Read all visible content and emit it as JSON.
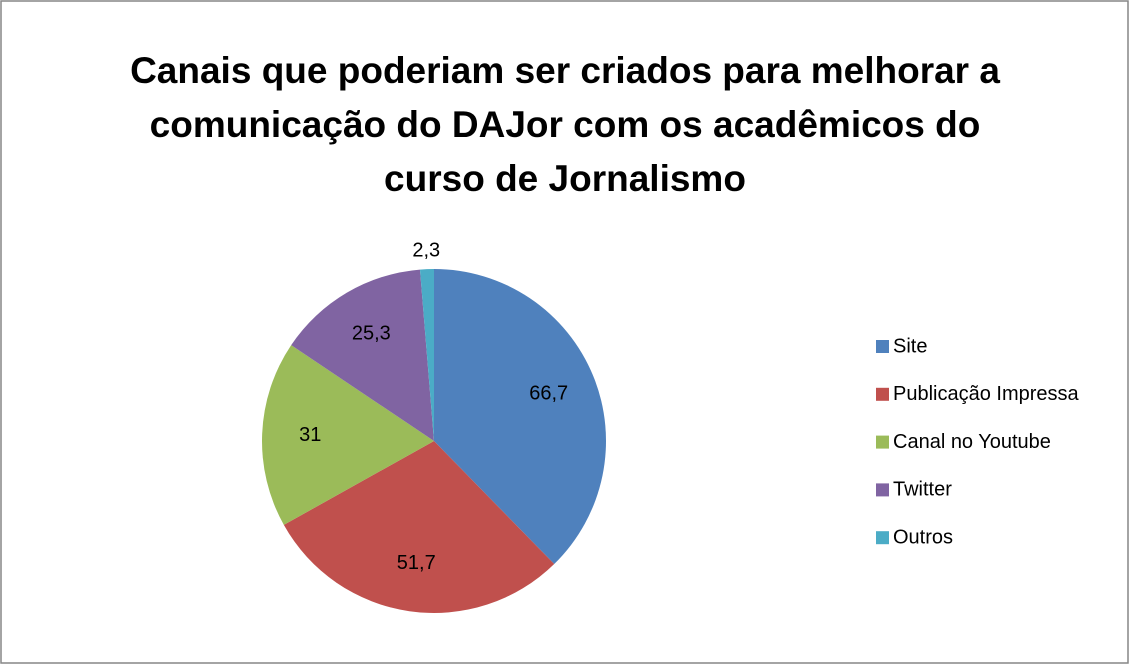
{
  "chart_data": {
    "type": "pie",
    "title": "Canais que poderiam ser criados para melhorar a comunicação do DAJor com os acadêmicos do curso de Jornalismo",
    "categories": [
      "Site",
      "Publicação Impressa",
      "Canal no Youtube",
      "Twitter",
      "Outros"
    ],
    "values": [
      66.7,
      51.7,
      31,
      25.3,
      2.3
    ],
    "value_labels": [
      "66,7",
      "51,7",
      "31",
      "25,3",
      "2,3"
    ],
    "colors": [
      "#4f81bd",
      "#c0504d",
      "#9bbb59",
      "#8064a2",
      "#4bacc6"
    ],
    "legend": "right"
  }
}
